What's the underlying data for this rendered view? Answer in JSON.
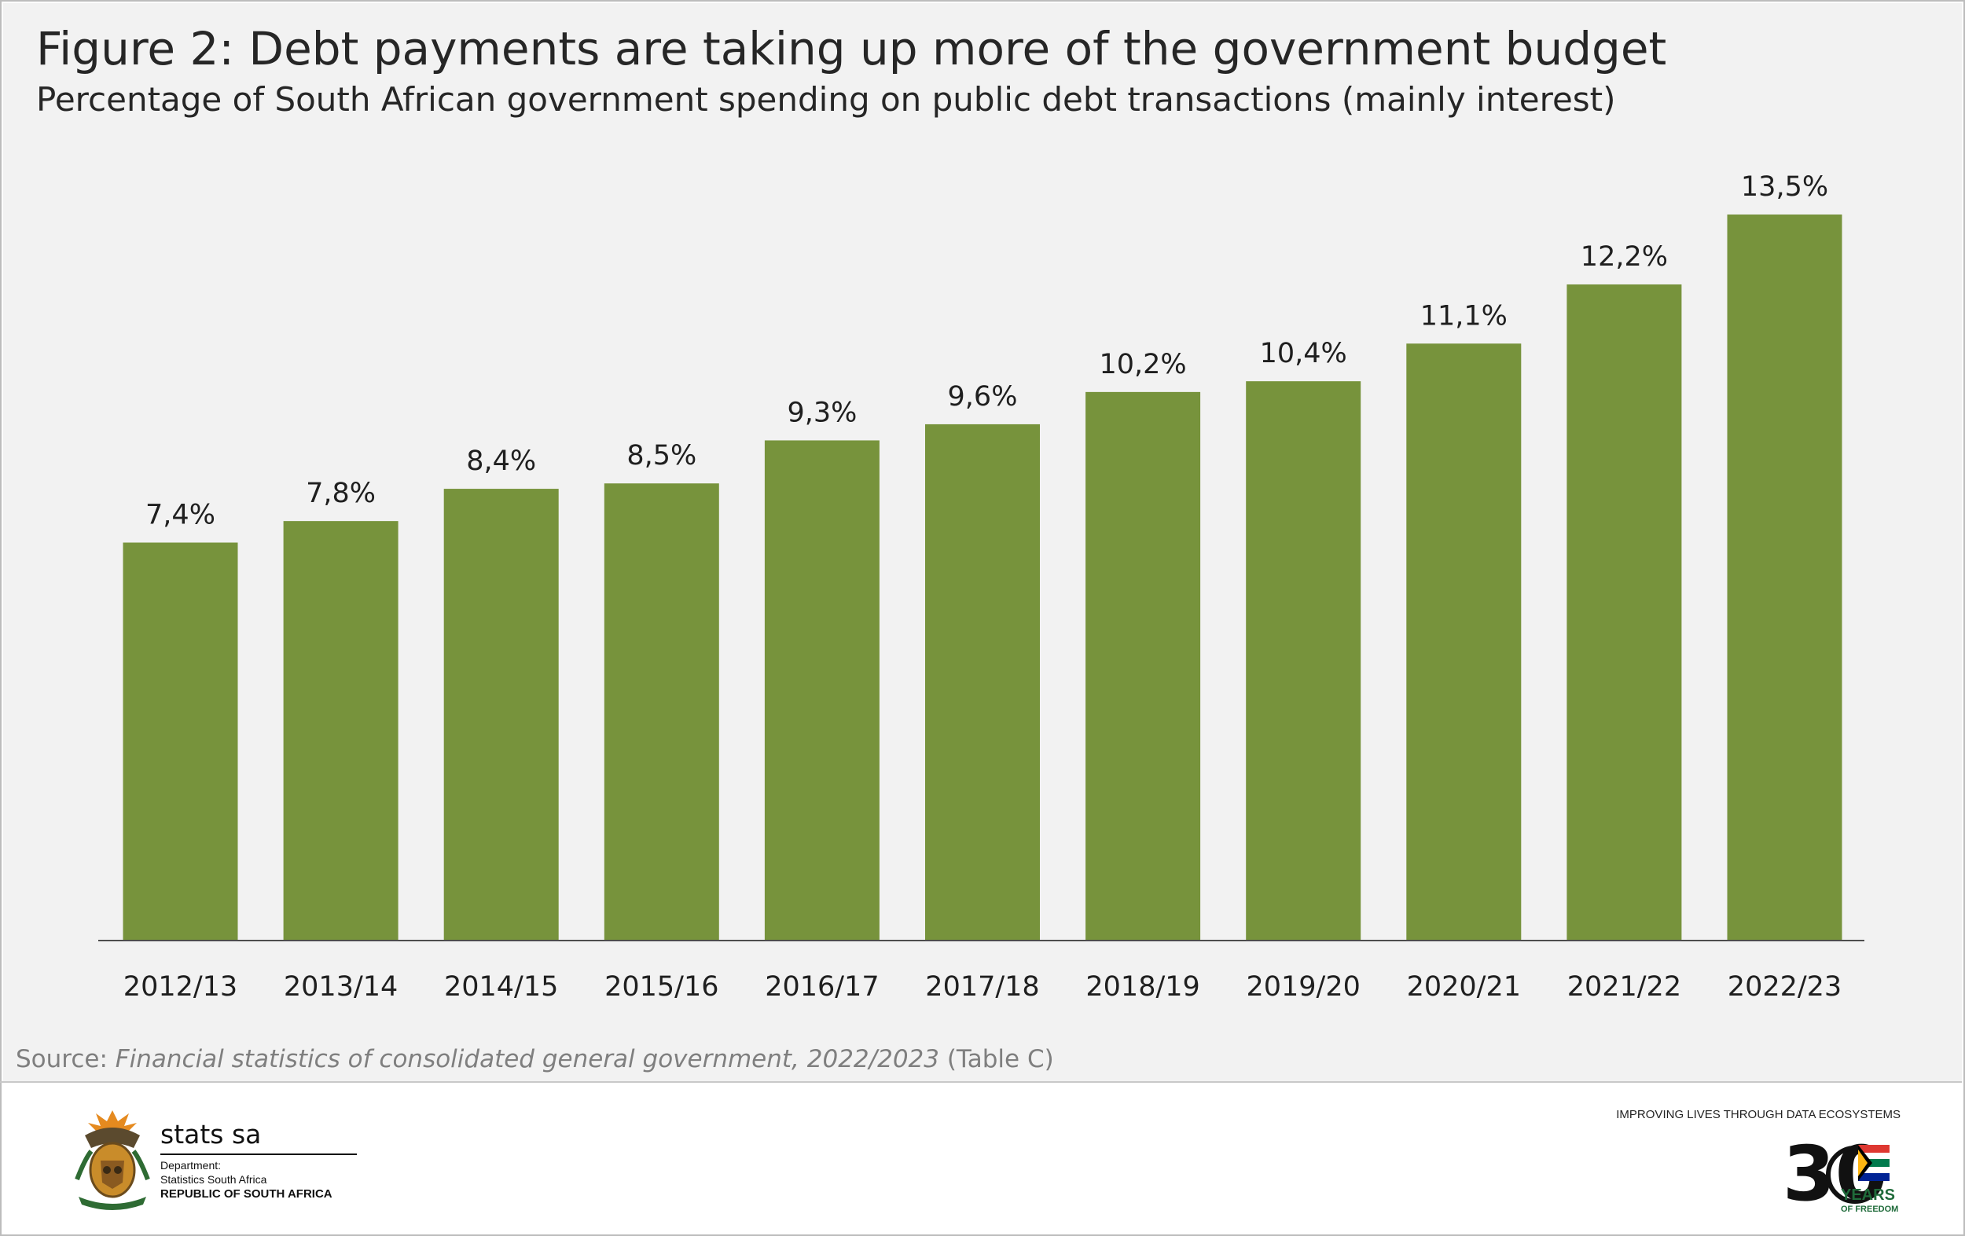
{
  "header": {
    "title": "Figure 2: Debt payments are taking up more of the government budget",
    "subtitle": "Percentage of South African government spending on public debt transactions (mainly interest)"
  },
  "chart_data": {
    "type": "bar",
    "categories": [
      "2012/13",
      "2013/14",
      "2014/15",
      "2015/16",
      "2016/17",
      "2017/18",
      "2018/19",
      "2019/20",
      "2020/21",
      "2021/22",
      "2022/23"
    ],
    "values": [
      7.4,
      7.8,
      8.4,
      8.5,
      9.3,
      9.6,
      10.2,
      10.4,
      11.1,
      12.2,
      13.5
    ],
    "labels": [
      "7,4%",
      "7,8%",
      "8,4%",
      "8,5%",
      "9,3%",
      "9,6%",
      "10,2%",
      "10,4%",
      "11,1%",
      "12,2%",
      "13,5%"
    ],
    "title": "Figure 2: Debt payments are taking up more of the government budget",
    "subtitle": "Percentage of South African government spending on public debt transactions (mainly interest)",
    "xlabel": "",
    "ylabel": "",
    "ylim": [
      0,
      13.5
    ],
    "grid": false,
    "legend": "none",
    "bar_color": "#77933c"
  },
  "source": {
    "prefix": "Source: ",
    "title": "Financial statistics of consolidated general government, 2022/2023",
    "suffix": " (Table C)"
  },
  "footer": {
    "logo_icon": "coat-of-arms-icon",
    "org_name": "stats sa",
    "dept_line1": "Department:",
    "dept_line2": "Statistics South Africa",
    "country": "REPUBLIC OF SOUTH AFRICA",
    "tagline": "IMPROVING LIVES THROUGH DATA ECOSYSTEMS",
    "anniversary_number": "30",
    "anniversary_years": "YEARS",
    "anniversary_sub": "OF FREEDOM"
  }
}
